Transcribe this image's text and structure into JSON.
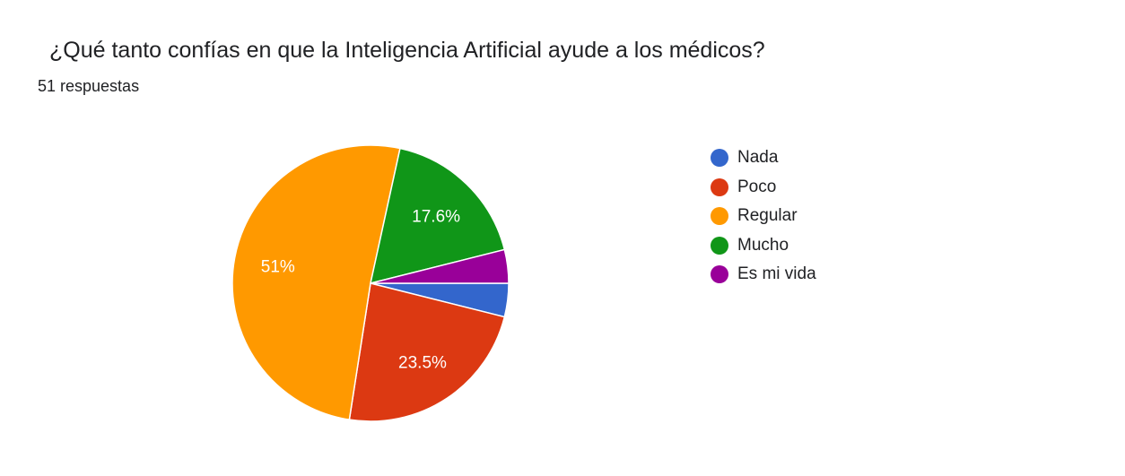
{
  "header": {
    "title": "¿Qué tanto confías en que la Inteligencia Artificial ayude a los médicos?",
    "subtitle": "51 respuestas"
  },
  "chart_data": {
    "type": "pie",
    "title": "¿Qué tanto confías en que la Inteligencia Artificial ayude a los médicos?",
    "total_responses": 51,
    "categories": [
      "Nada",
      "Poco",
      "Regular",
      "Mucho",
      "Es mi vida"
    ],
    "counts": [
      2,
      12,
      26,
      9,
      2
    ],
    "percentages": [
      3.9,
      23.5,
      51,
      17.6,
      3.9
    ],
    "slice_labels": [
      "",
      "23.5%",
      "51%",
      "17.6%",
      ""
    ],
    "colors": [
      "#3366cc",
      "#dc3912",
      "#ff9900",
      "#109618",
      "#990099"
    ],
    "legend_position": "right"
  }
}
